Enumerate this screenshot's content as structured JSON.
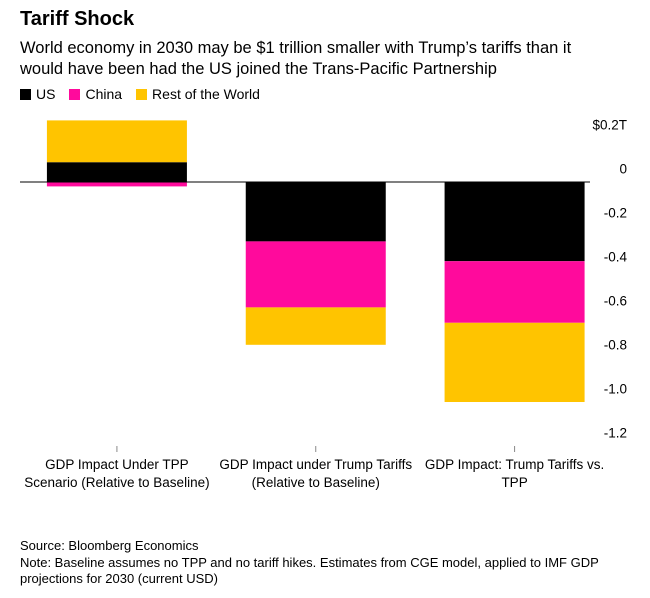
{
  "chart_data": {
    "type": "bar",
    "stacked": true,
    "title": "Tariff Shock",
    "subtitle": "World economy in 2030 may be $1 trillion smaller with Trump’s tariffs than it would have been had the US joined the Trans-Pacific Partnership",
    "categories": [
      "GDP Impact Under TPP Scenario (Relative to Baseline)",
      "GDP Impact under Trump Tariffs (Relative to Baseline)",
      "GDP Impact: Trump Tariffs vs. TPP"
    ],
    "series": [
      {
        "name": "US",
        "color": "#000000",
        "values": [
          0.09,
          -0.27,
          -0.36
        ]
      },
      {
        "name": "China",
        "color": "#ff0a9c",
        "values": [
          -0.02,
          -0.3,
          -0.28
        ]
      },
      {
        "name": "Rest of the World",
        "color": "#ffc400",
        "values": [
          0.19,
          -0.17,
          -0.36
        ]
      }
    ],
    "ylim": [
      -1.2,
      0.3
    ],
    "yticks": [
      {
        "value": 0.2,
        "label": "$0.2T"
      },
      0,
      -0.2,
      -0.4,
      -0.6,
      -0.8,
      {
        "value": -1.0,
        "label": "-1.0"
      },
      -1.2
    ],
    "grid": false,
    "source": "Source: Bloomberg Economics",
    "note": "Note: Baseline assumes no TPP and no tariff hikes. Estimates from CGE model, applied to IMF GDP projections for 2030 (current USD)"
  }
}
